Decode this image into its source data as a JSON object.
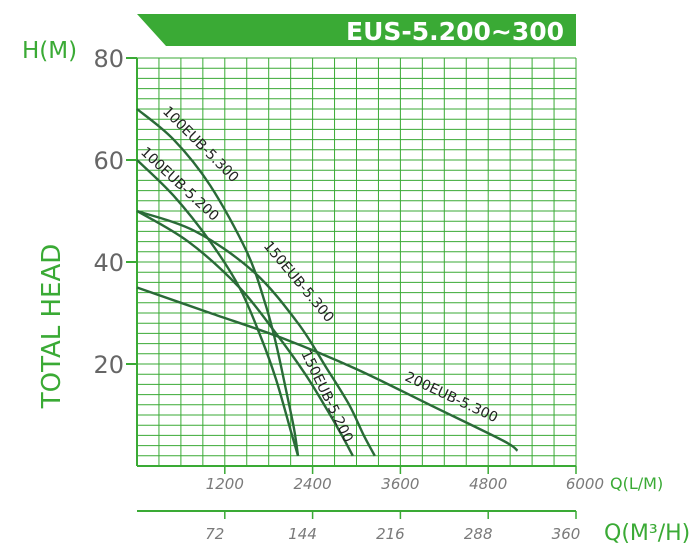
{
  "chart_data": {
    "type": "line",
    "title": "EUS-5.200~300",
    "ylabel": "TOTAL HEAD",
    "y_unit": "H(M)",
    "x_unit_primary": "Q(L/M)",
    "x_unit_secondary": "Q(M³/H)",
    "xlim": [
      0,
      6000
    ],
    "ylim": [
      0,
      80
    ],
    "x_ticks_primary": [
      "1200",
      "2400",
      "3600",
      "4800",
      "6000"
    ],
    "x_ticks_secondary": [
      "72",
      "144",
      "216",
      "288",
      "360"
    ],
    "y_ticks": [
      "80",
      "60",
      "40",
      "20"
    ],
    "grid": true,
    "series": [
      {
        "name": "100EUB-5.300",
        "x": [
          0,
          500,
          1000,
          1500,
          1750,
          1900,
          2050,
          2150,
          2200
        ],
        "y": [
          70,
          64,
          55,
          42,
          32,
          24,
          14,
          7,
          2
        ]
      },
      {
        "name": "100EUB-5.200",
        "x": [
          0,
          500,
          1000,
          1400,
          1700,
          1900,
          2100,
          2200
        ],
        "y": [
          60,
          53,
          44,
          35,
          25,
          17,
          7,
          2
        ]
      },
      {
        "name": "150EUB-5.300",
        "x": [
          0,
          800,
          1600,
          2200,
          2600,
          2900,
          3100,
          3250
        ],
        "y": [
          50,
          46,
          38,
          28,
          19,
          12,
          6,
          2
        ]
      },
      {
        "name": "150EUB-5.200",
        "x": [
          0,
          700,
          1400,
          1900,
          2300,
          2600,
          2800,
          2950
        ],
        "y": [
          50,
          44,
          35,
          26,
          18,
          11,
          6,
          2
        ]
      },
      {
        "name": "200EUB-5.300",
        "x": [
          0,
          1000,
          2000,
          3000,
          4000,
          5000,
          5200
        ],
        "y": [
          35,
          30,
          25,
          19,
          12,
          5,
          3
        ]
      }
    ]
  }
}
